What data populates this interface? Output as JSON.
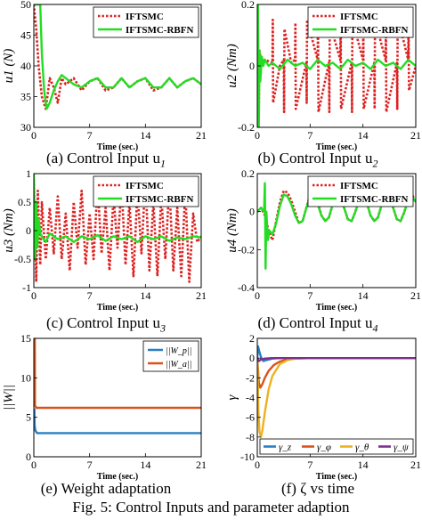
{
  "figure_caption": "Fig. 5: Control Inputs and parameter adaption",
  "captions": [
    "(a) Control Input u",
    "(b) Control Input u",
    "(c) Control Input u",
    "(d) Control Input u",
    "(e) Weight adaptation",
    "(f) ζ vs time"
  ],
  "caption_subscripts": [
    "1",
    "2",
    "3",
    "4",
    "",
    ""
  ],
  "colors": {
    "iftsmc": "#dd2222",
    "rbfn": "#22dd22",
    "blue": "#2a7fc4",
    "orange": "#d95319",
    "yellow": "#edb120",
    "purple": "#7e2f8e"
  },
  "chart_data": [
    {
      "type": "line",
      "xlabel": "Time (sec.)",
      "ylabel": "u1 (N)",
      "xlim": [
        0,
        21
      ],
      "ylim": [
        30,
        50
      ],
      "xticks": [
        0,
        7,
        14,
        21
      ],
      "yticks": [
        30,
        35,
        40,
        45,
        50
      ],
      "xtick_labels": [
        "0",
        "7",
        "14",
        "21"
      ],
      "ytick_labels": [
        "30",
        "35",
        "40",
        "45",
        "50"
      ],
      "legend": "top-right",
      "series": [
        {
          "name": "IFTSMC",
          "style": "dotted",
          "color": "#dd2222",
          "x": [
            0,
            0.3,
            0.6,
            1,
            1.5,
            2,
            2.5,
            3,
            3.5,
            4,
            5,
            6,
            7,
            8,
            9,
            10,
            11,
            12,
            13,
            14,
            15,
            16,
            17,
            18,
            19,
            20,
            21
          ],
          "y": [
            50,
            46,
            40,
            35,
            33,
            38,
            36.5,
            34,
            38,
            37,
            38,
            36,
            37.5,
            38,
            36,
            36.5,
            38,
            36.5,
            37.5,
            38,
            36,
            36.5,
            38,
            36.5,
            37.5,
            38,
            37
          ]
        },
        {
          "name": "IFTSMC-RBFN",
          "style": "solid",
          "color": "#22dd22",
          "x": [
            0,
            0.4,
            0.8,
            1,
            1.3,
            1.6,
            2,
            2.5,
            3,
            3.5,
            4,
            5,
            6,
            7,
            8,
            9,
            10,
            11,
            12,
            13,
            14,
            15,
            16,
            17,
            18,
            19,
            20,
            21
          ],
          "y": [
            50,
            50,
            50,
            42,
            36,
            33,
            34,
            36,
            37.5,
            38.5,
            38,
            37,
            36.5,
            37.5,
            38,
            36.5,
            36.5,
            38,
            36.5,
            37.5,
            38,
            36.5,
            36.5,
            38,
            36.5,
            37.5,
            38,
            37
          ]
        }
      ]
    },
    {
      "type": "line",
      "xlabel": "Time (sec.)",
      "ylabel": "u2 (Nm)",
      "xlim": [
        0,
        21
      ],
      "ylim": [
        -0.2,
        0.2
      ],
      "xticks": [
        0,
        7,
        14,
        21
      ],
      "yticks": [
        -0.2,
        0,
        0.2
      ],
      "xtick_labels": [
        "0",
        "7",
        "14",
        "21"
      ],
      "ytick_labels": [
        "-0.2",
        "0",
        "0.2"
      ],
      "legend": "top-right",
      "series": [
        {
          "name": "IFTSMC",
          "style": "dotted",
          "color": "#dd2222",
          "x": [
            0,
            0.2,
            0.3,
            0.5,
            1,
            2,
            2.05,
            2.1,
            3,
            3.5,
            3.55,
            3.6,
            4.5,
            5,
            5.05,
            5.1,
            6.5,
            6.55,
            6.6,
            8,
            8.05,
            8.1,
            9.5,
            9.55,
            9.6,
            11,
            11.05,
            11.1,
            12.5,
            12.55,
            12.6,
            14,
            14.05,
            14.1,
            15.5,
            15.55,
            15.6,
            17,
            17.05,
            17.1,
            18.5,
            18.55,
            18.6,
            20,
            20.05,
            20.1,
            21
          ],
          "y": [
            0.2,
            -0.15,
            0.05,
            0.01,
            0.02,
            0.01,
            0.15,
            -0.12,
            0,
            0.02,
            -0.15,
            0.12,
            0.01,
            0.02,
            0.14,
            -0.14,
            0.01,
            -0.12,
            0.15,
            0.02,
            0.16,
            -0.15,
            0.01,
            -0.15,
            0.14,
            0.02,
            0.16,
            -0.14,
            0.01,
            -0.15,
            0.15,
            0.02,
            0.15,
            -0.14,
            0.01,
            -0.14,
            0.15,
            0.02,
            0.16,
            -0.15,
            0.01,
            -0.14,
            0.16,
            0.02,
            0.15,
            -0.08,
            0.0
          ]
        },
        {
          "name": "IFTSMC-RBFN",
          "style": "solid",
          "color": "#22dd22",
          "x": [
            0,
            0.1,
            0.2,
            0.3,
            0.4,
            0.6,
            0.8,
            1,
            1.5,
            2,
            3,
            4,
            5,
            6,
            7,
            8,
            9,
            10,
            11,
            12,
            13,
            14,
            15,
            16,
            17,
            18,
            19,
            20,
            21
          ],
          "y": [
            0.0,
            0.2,
            -0.2,
            0.05,
            -0.05,
            0.03,
            0.0,
            0.02,
            0.0,
            0.01,
            -0.01,
            0.02,
            0.0,
            0.01,
            -0.01,
            0.02,
            0.0,
            0.01,
            -0.01,
            0.02,
            0.0,
            0.01,
            -0.01,
            0.02,
            0.0,
            0.01,
            -0.01,
            0.02,
            0.0
          ]
        }
      ]
    },
    {
      "type": "line",
      "xlabel": "Time (sec.)",
      "ylabel": "u3 (Nm)",
      "xlim": [
        0,
        21
      ],
      "ylim": [
        -1,
        1
      ],
      "xticks": [
        0,
        7,
        14,
        21
      ],
      "yticks": [
        -1,
        -0.5,
        0,
        0.5,
        1
      ],
      "xtick_labels": [
        "0",
        "7",
        "14",
        "21"
      ],
      "ytick_labels": [
        "-1",
        "-0.5",
        "0",
        "0.5",
        "1"
      ],
      "legend": "top-right",
      "series": [
        {
          "name": "IFTSMC",
          "style": "dotted",
          "color": "#dd2222",
          "x": [
            0,
            0.3,
            0.5,
            0.8,
            1,
            1.5,
            2,
            2.5,
            3,
            3.5,
            4,
            4.5,
            5,
            5.5,
            6,
            6.5,
            7,
            7.5,
            8,
            8.5,
            9,
            9.5,
            10,
            10.5,
            11,
            11.5,
            12,
            12.5,
            13,
            13.5,
            14,
            14.5,
            15,
            15.5,
            16,
            16.5,
            17,
            17.5,
            18,
            18.5,
            19,
            19.5,
            20,
            20.5,
            21
          ],
          "y": [
            0.9,
            -0.9,
            0.7,
            -0.6,
            0.5,
            -0.5,
            0.4,
            -0.4,
            0.6,
            -0.5,
            0.3,
            -0.7,
            0.5,
            -0.3,
            0.7,
            -0.6,
            0.3,
            -0.5,
            0.8,
            -0.4,
            0.4,
            -0.7,
            0.6,
            -0.3,
            0.8,
            -0.6,
            0.5,
            -0.8,
            0.7,
            -0.4,
            0.9,
            -0.7,
            0.5,
            -0.8,
            0.6,
            -0.5,
            0.8,
            -0.7,
            0.4,
            -0.8,
            0.7,
            -0.9,
            0.3,
            -0.2,
            -0.1
          ]
        },
        {
          "name": "IFTSMC-RBFN",
          "style": "solid",
          "color": "#22dd22",
          "x": [
            0,
            0.15,
            0.3,
            0.45,
            0.6,
            0.8,
            1,
            1.5,
            2,
            3,
            4,
            5,
            6,
            7,
            8,
            9,
            10,
            11,
            12,
            13,
            14,
            15,
            16,
            17,
            18,
            19,
            20,
            21
          ],
          "y": [
            1,
            -0.5,
            0.5,
            -0.3,
            0.2,
            -0.05,
            -0.1,
            -0.2,
            -0.05,
            -0.15,
            -0.1,
            -0.2,
            -0.1,
            -0.15,
            -0.08,
            -0.18,
            -0.1,
            -0.15,
            -0.1,
            -0.2,
            -0.1,
            -0.15,
            -0.1,
            -0.18,
            -0.12,
            -0.15,
            -0.1,
            -0.12
          ]
        }
      ]
    },
    {
      "type": "line",
      "xlabel": "Time (sec.)",
      "ylabel": "u4 (Nm)",
      "xlim": [
        0,
        21
      ],
      "ylim": [
        -0.4,
        0.2
      ],
      "xticks": [
        0,
        7,
        14,
        21
      ],
      "yticks": [
        -0.4,
        -0.2,
        0,
        0.2
      ],
      "xtick_labels": [
        "0",
        "7",
        "14",
        "21"
      ],
      "ytick_labels": [
        "-0.4",
        "-0.2",
        "0",
        "0.2"
      ],
      "legend": "top-right",
      "series": [
        {
          "name": "IFTSMC",
          "style": "dotted",
          "color": "#dd2222",
          "x": [
            0,
            0.5,
            1,
            1.5,
            2,
            2.5,
            3,
            3.5,
            4,
            4.5,
            5,
            5.5,
            6,
            6.5,
            7,
            7.5,
            8,
            8.5,
            9,
            9.5,
            10,
            10.5,
            11,
            11.5,
            12,
            12.5,
            13,
            13.5,
            14,
            14.5,
            15,
            15.5,
            16,
            16.5,
            17,
            17.5,
            18,
            18.5,
            19,
            19.5,
            20,
            20.5,
            21
          ],
          "y": [
            0,
            0.02,
            -0.02,
            -0.1,
            -0.15,
            -0.05,
            0.05,
            0.11,
            0.1,
            0.06,
            0.0,
            -0.06,
            -0.05,
            0.02,
            0.09,
            0.09,
            0.05,
            -0.02,
            -0.05,
            -0.03,
            0.04,
            0.09,
            0.08,
            0.02,
            -0.04,
            -0.05,
            0.0,
            0.07,
            0.09,
            0.05,
            -0.02,
            -0.05,
            -0.03,
            0.04,
            0.09,
            0.08,
            0.02,
            -0.04,
            -0.05,
            0.0,
            0.07,
            0.09,
            0.05
          ]
        },
        {
          "name": "IFTSMC-RBFN",
          "style": "solid",
          "color": "#22dd22",
          "x": [
            0,
            0.5,
            0.9,
            1.0,
            1.1,
            1.2,
            1.4,
            1.6,
            2,
            2.5,
            3,
            3.5,
            4,
            4.5,
            5,
            5.5,
            6,
            6.5,
            7,
            7.5,
            8,
            8.5,
            9,
            9.5,
            10,
            10.5,
            11,
            11.5,
            12,
            12.5,
            13,
            13.5,
            14,
            14.5,
            15,
            15.5,
            16,
            16.5,
            17,
            17.5,
            18,
            18.5,
            19,
            19.5,
            20,
            20.5,
            21
          ],
          "y": [
            0,
            0.02,
            0.0,
            0.15,
            -0.3,
            0.0,
            -0.15,
            -0.1,
            -0.12,
            -0.06,
            0.03,
            0.09,
            0.08,
            0.04,
            -0.02,
            -0.06,
            -0.05,
            0.02,
            0.08,
            0.08,
            0.04,
            -0.02,
            -0.05,
            -0.03,
            0.04,
            0.08,
            0.07,
            0.02,
            -0.04,
            -0.05,
            0.0,
            0.06,
            0.08,
            0.05,
            -0.02,
            -0.05,
            -0.03,
            0.04,
            0.08,
            0.07,
            0.02,
            -0.04,
            -0.05,
            0.0,
            0.06,
            0.08,
            0.05
          ]
        }
      ]
    },
    {
      "type": "line",
      "xlabel": "Time (sec.)",
      "ylabel": "||W||",
      "xlim": [
        0,
        21
      ],
      "ylim": [
        0,
        15
      ],
      "xticks": [
        0,
        7,
        14,
        21
      ],
      "yticks": [
        0,
        5,
        10,
        15
      ],
      "xtick_labels": [
        "0",
        "7",
        "14",
        "21"
      ],
      "ytick_labels": [
        "0",
        "5",
        "10",
        "15"
      ],
      "legend": "top-right",
      "series": [
        {
          "name": "||W_p||",
          "style": "solid",
          "color": "#2a7fc4",
          "x": [
            0,
            0.08,
            0.1,
            0.2,
            0.4,
            21
          ],
          "y": [
            5,
            6,
            4,
            3.3,
            3.0,
            3.0
          ]
        },
        {
          "name": "||W_a||",
          "style": "solid",
          "color": "#d95319",
          "x": [
            0,
            0.12,
            0.15,
            0.3,
            21
          ],
          "y": [
            15,
            15,
            6.5,
            6.2,
            6.2
          ]
        }
      ]
    },
    {
      "type": "line",
      "xlabel": "Time (sec.)",
      "ylabel": "γ",
      "xlim": [
        0,
        21
      ],
      "ylim": [
        -10,
        2
      ],
      "xticks": [
        0,
        7,
        14,
        21
      ],
      "yticks": [
        -10,
        -8,
        -6,
        -4,
        -2,
        0,
        2
      ],
      "xtick_labels": [
        "0",
        "7",
        "14",
        "21"
      ],
      "ytick_labels": [
        "-10",
        "-8",
        "-6",
        "-4",
        "-2",
        "0",
        "2"
      ],
      "legend": "bottom",
      "series": [
        {
          "name": "γ_z",
          "style": "solid",
          "color": "#2a7fc4",
          "x": [
            0,
            0.1,
            0.3,
            0.5,
            0.8,
            1.2,
            2,
            3,
            5,
            21
          ],
          "y": [
            0,
            1.2,
            0.6,
            0.1,
            -0.3,
            -0.2,
            -0.05,
            0,
            0,
            0
          ]
        },
        {
          "name": "γ_φ",
          "style": "solid",
          "color": "#d95319",
          "x": [
            0,
            0.2,
            0.4,
            0.7,
            1,
            1.5,
            2.2,
            3,
            4,
            5,
            7,
            21
          ],
          "y": [
            0,
            -2.5,
            -3.0,
            -2.6,
            -2.0,
            -1.3,
            -0.7,
            -0.35,
            -0.15,
            -0.05,
            0,
            0
          ]
        },
        {
          "name": "γ_θ",
          "style": "solid",
          "color": "#edb120",
          "x": [
            0,
            0.15,
            0.3,
            0.5,
            0.7,
            1,
            1.5,
            2,
            3,
            4,
            5,
            7,
            21
          ],
          "y": [
            0,
            -5.5,
            -7.5,
            -8.0,
            -7.2,
            -5.5,
            -3.2,
            -1.8,
            -0.6,
            -0.2,
            -0.06,
            0,
            0
          ]
        },
        {
          "name": "γ_ψ",
          "style": "solid",
          "color": "#7e2f8e",
          "x": [
            0,
            0.2,
            0.5,
            1,
            2,
            21
          ],
          "y": [
            0,
            -0.3,
            -0.15,
            -0.05,
            0,
            0
          ]
        }
      ]
    }
  ]
}
